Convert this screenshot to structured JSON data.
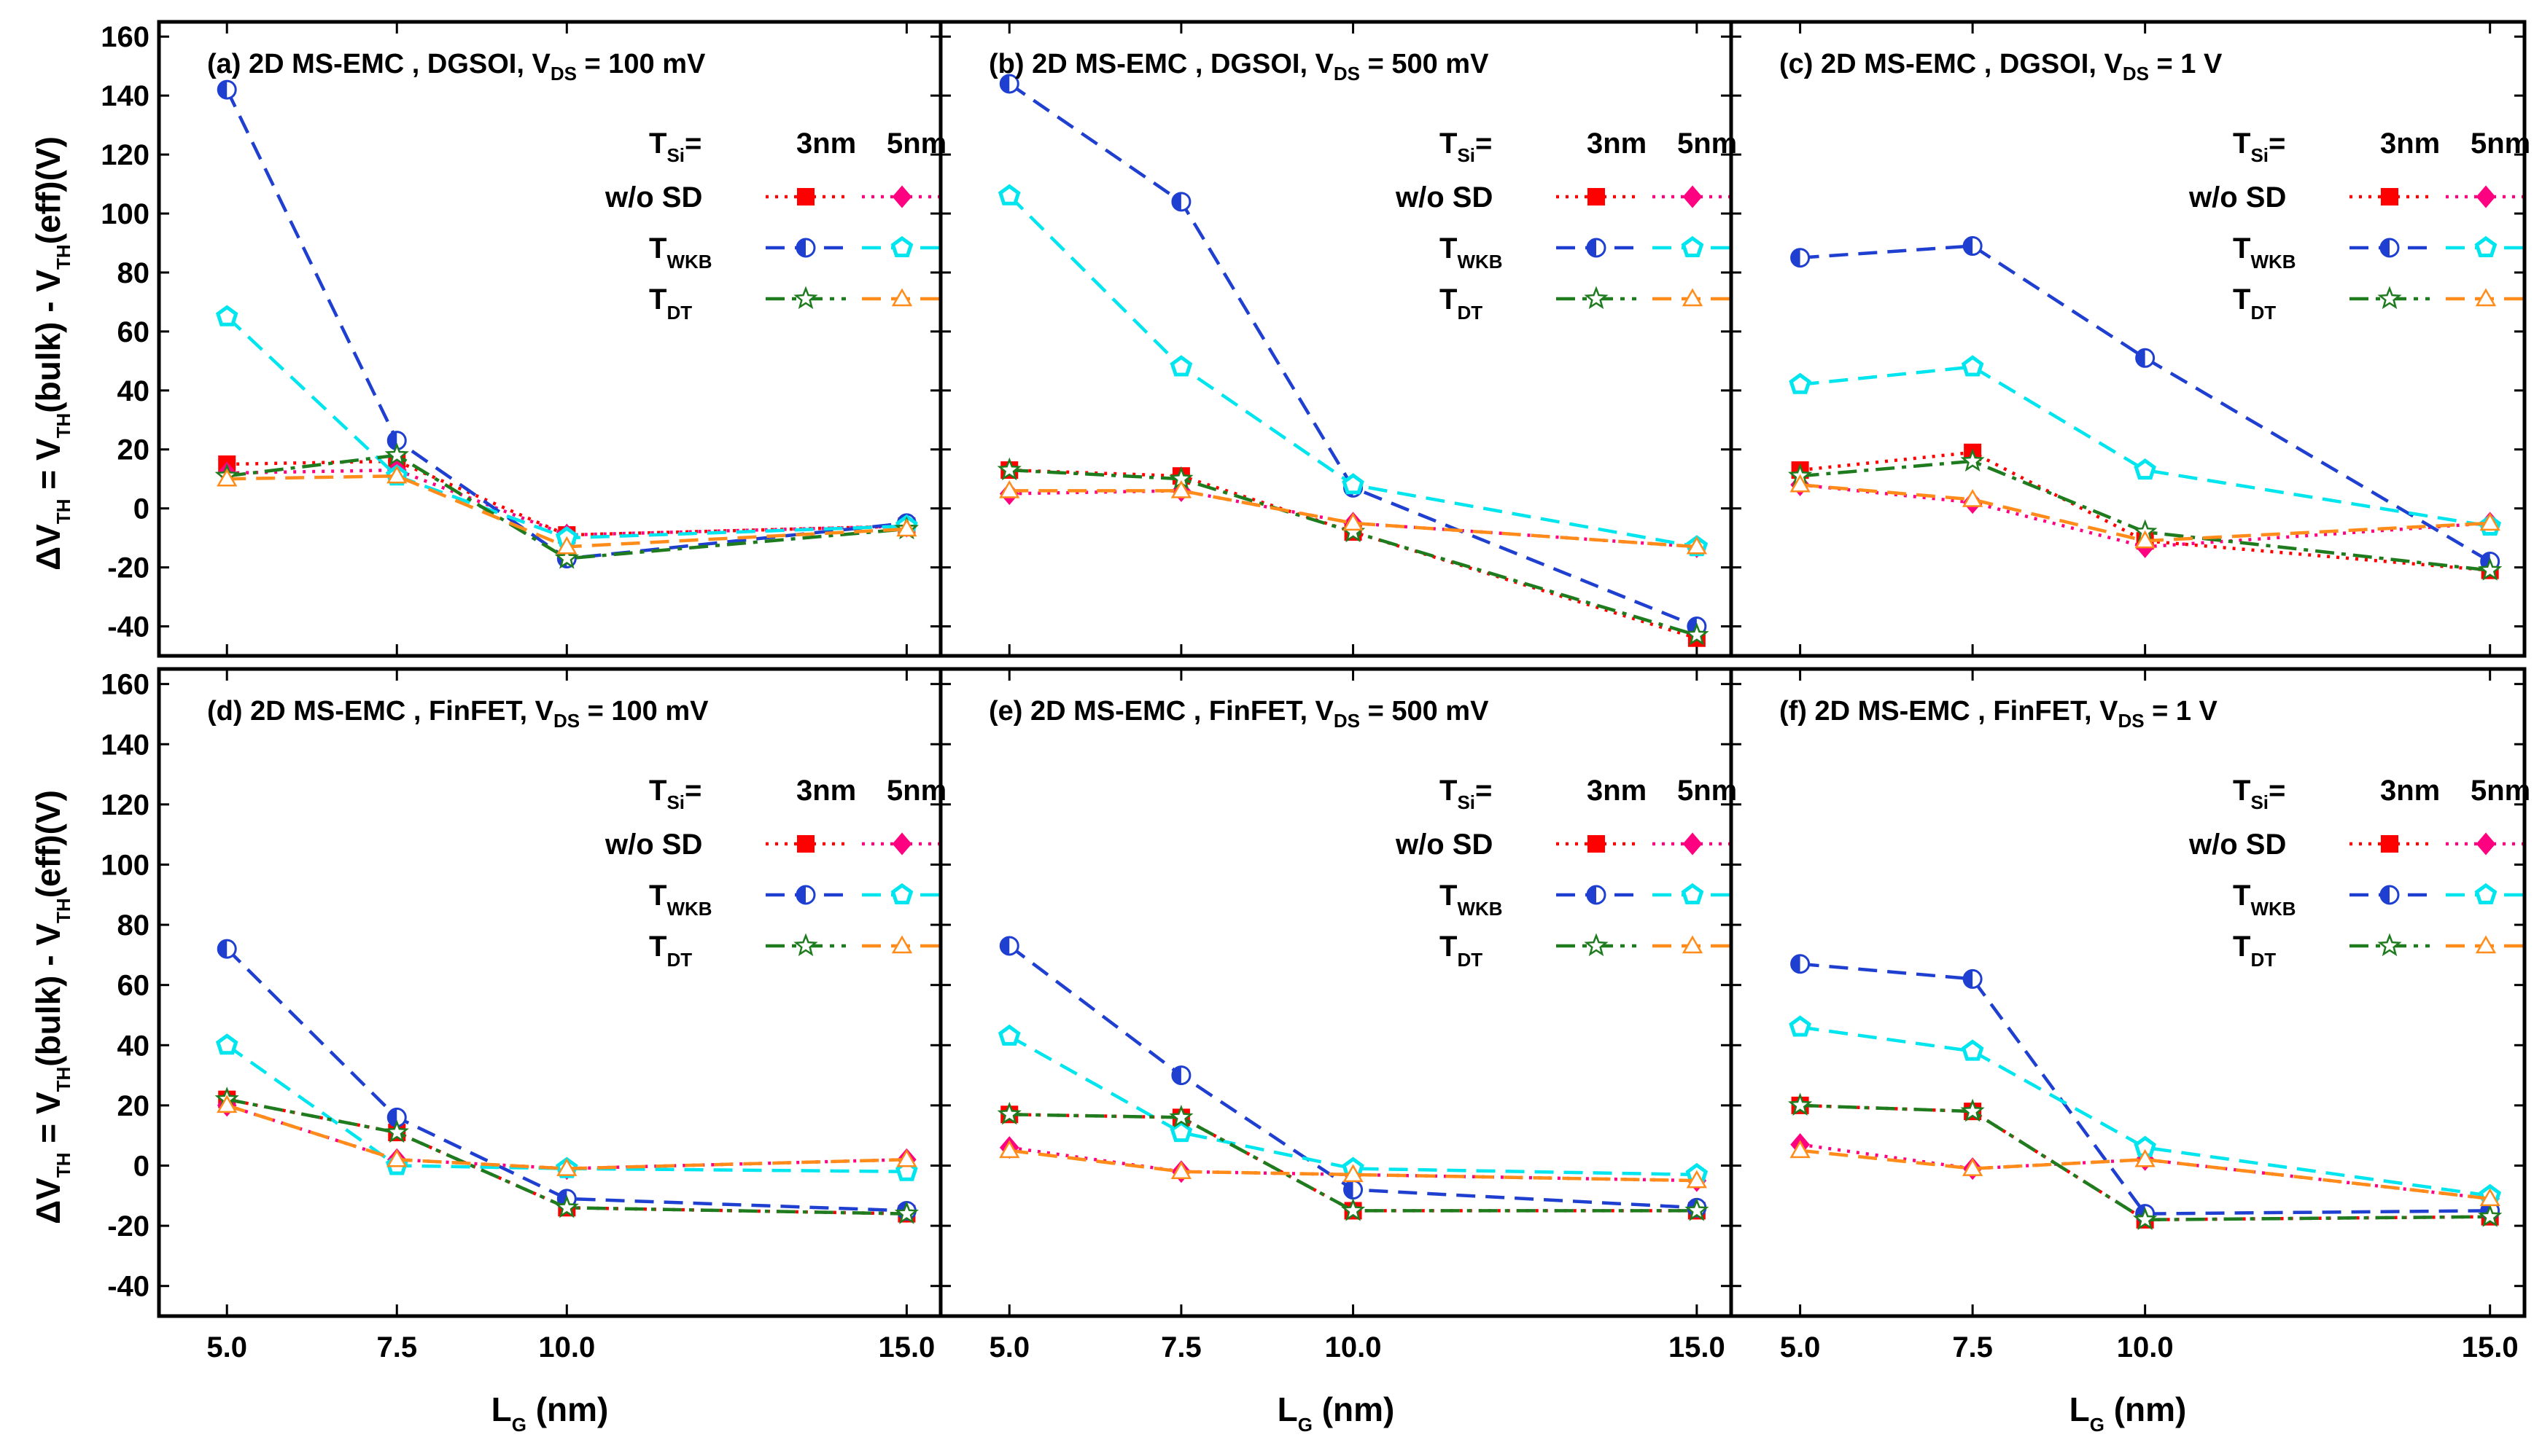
{
  "axis_text": {
    "ylabel_delta": "ΔV",
    "ylabel_mid": " = V",
    "ylabel_mid2": "(bulk) - V",
    "ylabel_end": "(eff)(V)",
    "sub_TH": "TH",
    "xlabel_main": "L",
    "xlabel_sub": "G",
    "xlabel_end": " (nm)"
  },
  "legend": {
    "tsi": "T",
    "tsi_sub": "Si",
    "tsi_eq": "=",
    "col_3nm": "3nm",
    "col_5nm": "5nm",
    "row_wosd": "w/o SD",
    "row_twkb": "T",
    "row_twkb_sub": "WKB",
    "row_tdt": "T",
    "row_tdt_sub": "DT"
  },
  "chart_data": [
    {
      "type": "line",
      "title_prefix": "(a) 2D MS-EMC , DGSOI, V",
      "title_sub": "DS",
      "title_suffix": " = 100 mV",
      "xlabel": "L_G (nm)",
      "ylabel": "ΔV_TH = V_TH(bulk) - V_TH(eff)(V)",
      "x": [
        5.0,
        7.5,
        10.0,
        15.0
      ],
      "xlim": [
        4.0,
        15.5
      ],
      "ylim": [
        -50,
        165
      ],
      "xticks": [
        "5.0",
        "7.5",
        "10.0",
        "15.0"
      ],
      "yticks": [
        "-40",
        "-20",
        "0",
        "20",
        "40",
        "60",
        "80",
        "100",
        "120",
        "140",
        "160"
      ],
      "series": [
        {
          "name": "w/o SD 3nm",
          "values": [
            15,
            16,
            -9,
            -6
          ]
        },
        {
          "name": "w/o SD 5nm",
          "values": [
            12,
            13,
            -9,
            -6
          ]
        },
        {
          "name": "T_WKB 3nm",
          "values": [
            142,
            23,
            -17,
            -5
          ]
        },
        {
          "name": "T_WKB 5nm",
          "values": [
            65,
            11,
            -10,
            -6
          ]
        },
        {
          "name": "T_DT 3nm",
          "values": [
            11,
            18,
            -17,
            -7
          ]
        },
        {
          "name": "T_DT 5nm",
          "values": [
            10,
            11,
            -13,
            -7
          ]
        }
      ]
    },
    {
      "type": "line",
      "title_prefix": "(b) 2D MS-EMC , DGSOI, V",
      "title_sub": "DS",
      "title_suffix": " = 500 mV",
      "xlabel": "L_G (nm)",
      "ylabel": "ΔV_TH = V_TH(bulk) - V_TH(eff)(V)",
      "x": [
        5.0,
        7.5,
        10.0,
        15.0
      ],
      "xlim": [
        4.0,
        15.5
      ],
      "ylim": [
        -50,
        165
      ],
      "xticks": [
        "5.0",
        "7.5",
        "10.0",
        "15.0"
      ],
      "yticks": [
        "-40",
        "-20",
        "0",
        "20",
        "40",
        "60",
        "80",
        "100",
        "120",
        "140",
        "160"
      ],
      "series": [
        {
          "name": "w/o SD 3nm",
          "values": [
            13,
            11,
            -8,
            -44
          ]
        },
        {
          "name": "w/o SD 5nm",
          "values": [
            5,
            6,
            -5,
            -13
          ]
        },
        {
          "name": "T_WKB 3nm",
          "values": [
            144,
            104,
            7,
            -40
          ]
        },
        {
          "name": "T_WKB 5nm",
          "values": [
            106,
            48,
            8,
            -13
          ]
        },
        {
          "name": "T_DT 3nm",
          "values": [
            13,
            10,
            -8,
            -43
          ]
        },
        {
          "name": "T_DT 5nm",
          "values": [
            6,
            6,
            -5,
            -13
          ]
        }
      ]
    },
    {
      "type": "line",
      "title_prefix": "(c) 2D MS-EMC , DGSOI, V",
      "title_sub": "DS",
      "title_suffix": " = 1 V",
      "xlabel": "L_G (nm)",
      "ylabel": "ΔV_TH = V_TH(bulk) - V_TH(eff)(V)",
      "x": [
        5.0,
        7.5,
        10.0,
        15.0
      ],
      "xlim": [
        4.0,
        15.5
      ],
      "ylim": [
        -50,
        165
      ],
      "xticks": [
        "5.0",
        "7.5",
        "10.0",
        "15.0"
      ],
      "yticks": [
        "-40",
        "-20",
        "0",
        "20",
        "40",
        "60",
        "80",
        "100",
        "120",
        "140",
        "160"
      ],
      "series": [
        {
          "name": "w/o SD 3nm",
          "values": [
            13,
            19,
            -11,
            -21
          ]
        },
        {
          "name": "w/o SD 5nm",
          "values": [
            8,
            2,
            -13,
            -5
          ]
        },
        {
          "name": "T_WKB 3nm",
          "values": [
            85,
            89,
            51,
            -18
          ]
        },
        {
          "name": "T_WKB 5nm",
          "values": [
            42,
            48,
            13,
            -6
          ]
        },
        {
          "name": "T_DT 3nm",
          "values": [
            11,
            16,
            -8,
            -21
          ]
        },
        {
          "name": "T_DT 5nm",
          "values": [
            8,
            3,
            -11,
            -5
          ]
        }
      ]
    },
    {
      "type": "line",
      "title_prefix": "(d) 2D MS-EMC , FinFET, V",
      "title_sub": "DS",
      "title_suffix": " = 100 mV",
      "xlabel": "L_G (nm)",
      "ylabel": "ΔV_TH = V_TH(bulk) - V_TH(eff)(V)",
      "x": [
        5.0,
        7.5,
        10.0,
        15.0
      ],
      "xlim": [
        4.0,
        15.5
      ],
      "ylim": [
        -50,
        165
      ],
      "xticks": [
        "5.0",
        "7.5",
        "10.0",
        "15.0"
      ],
      "yticks": [
        "-40",
        "-20",
        "0",
        "20",
        "40",
        "60",
        "80",
        "100",
        "120",
        "140",
        "160"
      ],
      "series": [
        {
          "name": "w/o SD 3nm",
          "values": [
            22,
            11,
            -14,
            -16
          ]
        },
        {
          "name": "w/o SD 5nm",
          "values": [
            20,
            2,
            -1,
            2
          ]
        },
        {
          "name": "T_WKB 3nm",
          "values": [
            72,
            16,
            -11,
            -15
          ]
        },
        {
          "name": "T_WKB 5nm",
          "values": [
            40,
            0,
            -1,
            -2
          ]
        },
        {
          "name": "T_DT 3nm",
          "values": [
            22,
            11,
            -14,
            -16
          ]
        },
        {
          "name": "T_DT 5nm",
          "values": [
            20,
            2,
            -1,
            2
          ]
        }
      ]
    },
    {
      "type": "line",
      "title_prefix": "(e) 2D MS-EMC , FinFET, V",
      "title_sub": "DS",
      "title_suffix": " = 500 mV",
      "xlabel": "L_G (nm)",
      "ylabel": "ΔV_TH = V_TH(bulk) - V_TH(eff)(V)",
      "x": [
        5.0,
        7.5,
        10.0,
        15.0
      ],
      "xlim": [
        4.0,
        15.5
      ],
      "ylim": [
        -50,
        165
      ],
      "xticks": [
        "5.0",
        "7.5",
        "10.0",
        "15.0"
      ],
      "yticks": [
        "-40",
        "-20",
        "0",
        "20",
        "40",
        "60",
        "80",
        "100",
        "120",
        "140",
        "160"
      ],
      "series": [
        {
          "name": "w/o SD 3nm",
          "values": [
            17,
            16,
            -15,
            -15
          ]
        },
        {
          "name": "w/o SD 5nm",
          "values": [
            6,
            -2,
            -3,
            -5
          ]
        },
        {
          "name": "T_WKB 3nm",
          "values": [
            73,
            30,
            -8,
            -14
          ]
        },
        {
          "name": "T_WKB 5nm",
          "values": [
            43,
            11,
            -1,
            -3
          ]
        },
        {
          "name": "T_DT 3nm",
          "values": [
            17,
            16,
            -15,
            -15
          ]
        },
        {
          "name": "T_DT 5nm",
          "values": [
            5,
            -2,
            -3,
            -5
          ]
        }
      ]
    },
    {
      "type": "line",
      "title_prefix": "(f) 2D MS-EMC , FinFET, V",
      "title_sub": "DS",
      "title_suffix": " = 1 V",
      "xlabel": "L_G (nm)",
      "ylabel": "ΔV_TH = V_TH(bulk) - V_TH(eff)(V)",
      "x": [
        5.0,
        7.5,
        10.0,
        15.0
      ],
      "xlim": [
        4.0,
        15.5
      ],
      "ylim": [
        -50,
        165
      ],
      "xticks": [
        "5.0",
        "7.5",
        "10.0",
        "15.0"
      ],
      "yticks": [
        "-40",
        "-20",
        "0",
        "20",
        "40",
        "60",
        "80",
        "100",
        "120",
        "140",
        "160"
      ],
      "series": [
        {
          "name": "w/o SD 3nm",
          "values": [
            20,
            18,
            -18,
            -17
          ]
        },
        {
          "name": "w/o SD 5nm",
          "values": [
            7,
            -1,
            2,
            -11
          ]
        },
        {
          "name": "T_WKB 3nm",
          "values": [
            67,
            62,
            -16,
            -15
          ]
        },
        {
          "name": "T_WKB 5nm",
          "values": [
            46,
            38,
            6,
            -10
          ]
        },
        {
          "name": "T_DT 3nm",
          "values": [
            20,
            18,
            -18,
            -17
          ]
        },
        {
          "name": "T_DT 5nm",
          "values": [
            5,
            -1,
            2,
            -11
          ]
        }
      ]
    }
  ],
  "series_styles": [
    {
      "label": "w/o SD 3nm",
      "color": "#ff0000",
      "marker": "square"
    },
    {
      "label": "w/o SD 5nm",
      "color": "#ff0080",
      "marker": "diamond"
    },
    {
      "label": "T_WKB 3nm",
      "color": "#1f3fd0",
      "marker": "halfcircle"
    },
    {
      "label": "T_WKB 5nm",
      "color": "#00e5ee",
      "marker": "pentagon"
    },
    {
      "label": "T_DT 3nm",
      "color": "#1e7b1e",
      "marker": "star"
    },
    {
      "label": "T_DT 5nm",
      "color": "#ff8c1a",
      "marker": "triangle"
    }
  ]
}
